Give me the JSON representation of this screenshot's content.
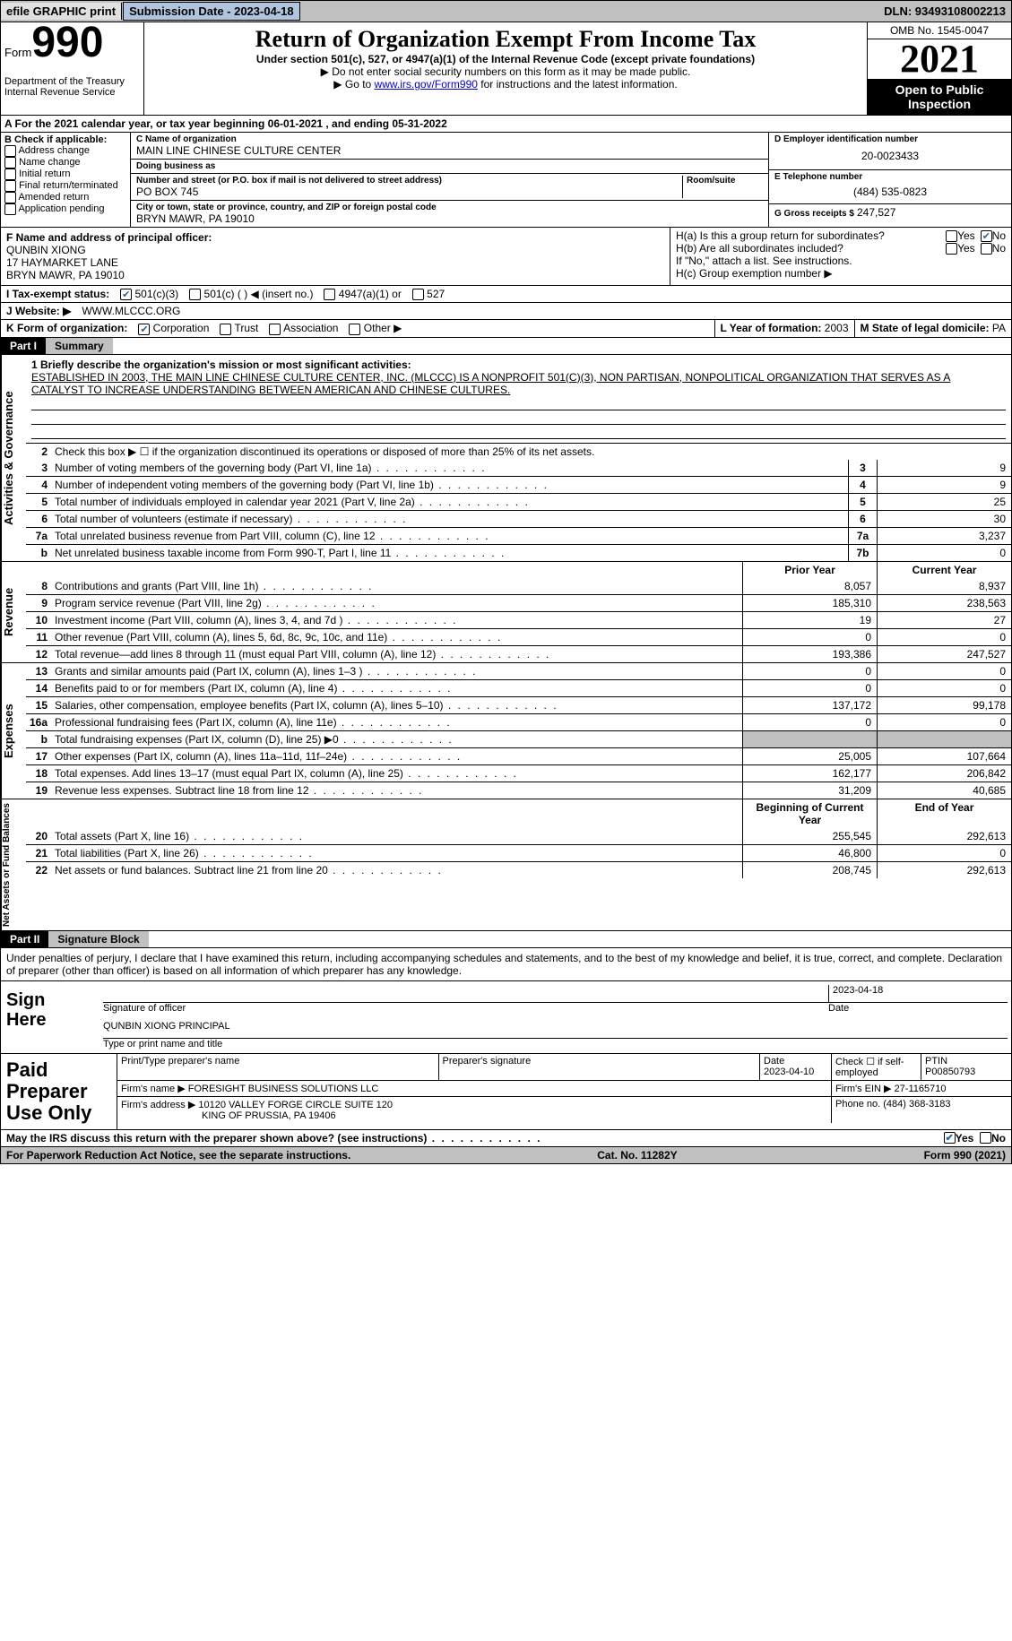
{
  "topbar": {
    "efile": "efile GRAPHIC print",
    "submission": "Submission Date - 2023-04-18",
    "dln": "DLN: 93493108002213"
  },
  "header": {
    "form_word": "Form",
    "form_num": "990",
    "dept": "Department of the Treasury",
    "irs": "Internal Revenue Service",
    "title": "Return of Organization Exempt From Income Tax",
    "subtitle": "Under section 501(c), 527, or 4947(a)(1) of the Internal Revenue Code (except private foundations)",
    "note1": "▶ Do not enter social security numbers on this form as it may be made public.",
    "note2_pre": "▶ Go to ",
    "note2_link": "www.irs.gov/Form990",
    "note2_post": " for instructions and the latest information.",
    "omb": "OMB No. 1545-0047",
    "year": "2021",
    "open": "Open to Public Inspection"
  },
  "rowA": "A For the 2021 calendar year, or tax year beginning 06-01-2021   , and ending 05-31-2022",
  "boxB": {
    "label": "B Check if applicable:",
    "items": [
      "Address change",
      "Name change",
      "Initial return",
      "Final return/terminated",
      "Amended return",
      "Application pending"
    ]
  },
  "boxC": {
    "name_label": "C Name of organization",
    "name": "MAIN LINE CHINESE CULTURE CENTER",
    "dba_label": "Doing business as",
    "dba": "",
    "street_label": "Number and street (or P.O. box if mail is not delivered to street address)",
    "room_label": "Room/suite",
    "street": "PO BOX 745",
    "city_label": "City or town, state or province, country, and ZIP or foreign postal code",
    "city": "BRYN MAWR, PA  19010"
  },
  "boxDEG": {
    "d_label": "D Employer identification number",
    "d_val": "20-0023433",
    "e_label": "E Telephone number",
    "e_val": "(484) 535-0823",
    "g_label": "G Gross receipts $",
    "g_val": "247,527"
  },
  "boxF": {
    "label": "F Name and address of principal officer:",
    "name": "QUNBIN XIONG",
    "addr1": "17 HAYMARKET LANE",
    "addr2": "BRYN MAWR, PA  19010"
  },
  "boxH": {
    "a": "H(a)  Is this a group return for subordinates?",
    "b": "H(b)  Are all subordinates included?",
    "b_note": "If \"No,\" attach a list. See instructions.",
    "c": "H(c)  Group exemption number ▶"
  },
  "rowI": {
    "label": "I   Tax-exempt status:",
    "opts": [
      "501(c)(3)",
      "501(c) (  ) ◀ (insert no.)",
      "4947(a)(1) or",
      "527"
    ]
  },
  "rowJ": {
    "label": "J   Website: ▶",
    "val": "WWW.MLCCC.ORG"
  },
  "rowK": {
    "label": "K Form of organization:",
    "opts": [
      "Corporation",
      "Trust",
      "Association",
      "Other ▶"
    ]
  },
  "rowL": {
    "label": "L Year of formation:",
    "val": "2003"
  },
  "rowM": {
    "label": "M State of legal domicile:",
    "val": "PA"
  },
  "partI": {
    "num": "Part I",
    "title": "Summary"
  },
  "summary": {
    "q1_label": "1   Briefly describe the organization's mission or most significant activities:",
    "q1_text": "ESTABLISHED IN 2003, THE MAIN LINE CHINESE CULTURE CENTER, INC. (MLCCC) IS A NONPROFIT 501(C)(3), NON PARTISAN, NONPOLITICAL ORGANIZATION THAT SERVES AS A CATALYST TO INCREASE UNDERSTANDING BETWEEN AMERICAN AND CHINESE CULTURES.",
    "q2": "Check this box ▶ ☐ if the organization discontinued its operations or disposed of more than 25% of its net assets.",
    "gov_lines": [
      {
        "n": "3",
        "t": "Number of voting members of the governing body (Part VI, line 1a)",
        "b": "3",
        "v": "9"
      },
      {
        "n": "4",
        "t": "Number of independent voting members of the governing body (Part VI, line 1b)",
        "b": "4",
        "v": "9"
      },
      {
        "n": "5",
        "t": "Total number of individuals employed in calendar year 2021 (Part V, line 2a)",
        "b": "5",
        "v": "25"
      },
      {
        "n": "6",
        "t": "Total number of volunteers (estimate if necessary)",
        "b": "6",
        "v": "30"
      },
      {
        "n": "7a",
        "t": "Total unrelated business revenue from Part VIII, column (C), line 12",
        "b": "7a",
        "v": "3,237"
      },
      {
        "n": "b",
        "t": "Net unrelated business taxable income from Form 990-T, Part I, line 11",
        "b": "7b",
        "v": "0"
      }
    ],
    "col_prior": "Prior Year",
    "col_curr": "Current Year",
    "rev_lines": [
      {
        "n": "8",
        "t": "Contributions and grants (Part VIII, line 1h)",
        "p": "8,057",
        "c": "8,937"
      },
      {
        "n": "9",
        "t": "Program service revenue (Part VIII, line 2g)",
        "p": "185,310",
        "c": "238,563"
      },
      {
        "n": "10",
        "t": "Investment income (Part VIII, column (A), lines 3, 4, and 7d )",
        "p": "19",
        "c": "27"
      },
      {
        "n": "11",
        "t": "Other revenue (Part VIII, column (A), lines 5, 6d, 8c, 9c, 10c, and 11e)",
        "p": "0",
        "c": "0"
      },
      {
        "n": "12",
        "t": "Total revenue—add lines 8 through 11 (must equal Part VIII, column (A), line 12)",
        "p": "193,386",
        "c": "247,527"
      }
    ],
    "exp_lines": [
      {
        "n": "13",
        "t": "Grants and similar amounts paid (Part IX, column (A), lines 1–3 )",
        "p": "0",
        "c": "0"
      },
      {
        "n": "14",
        "t": "Benefits paid to or for members (Part IX, column (A), line 4)",
        "p": "0",
        "c": "0"
      },
      {
        "n": "15",
        "t": "Salaries, other compensation, employee benefits (Part IX, column (A), lines 5–10)",
        "p": "137,172",
        "c": "99,178"
      },
      {
        "n": "16a",
        "t": "Professional fundraising fees (Part IX, column (A), line 11e)",
        "p": "0",
        "c": "0"
      },
      {
        "n": "b",
        "t": "Total fundraising expenses (Part IX, column (D), line 25) ▶0",
        "p": "",
        "c": "",
        "shade": true
      },
      {
        "n": "17",
        "t": "Other expenses (Part IX, column (A), lines 11a–11d, 11f–24e)",
        "p": "25,005",
        "c": "107,664"
      },
      {
        "n": "18",
        "t": "Total expenses. Add lines 13–17 (must equal Part IX, column (A), line 25)",
        "p": "162,177",
        "c": "206,842"
      },
      {
        "n": "19",
        "t": "Revenue less expenses. Subtract line 18 from line 12",
        "p": "31,209",
        "c": "40,685"
      }
    ],
    "col_begin": "Beginning of Current Year",
    "col_end": "End of Year",
    "net_lines": [
      {
        "n": "20",
        "t": "Total assets (Part X, line 16)",
        "p": "255,545",
        "c": "292,613"
      },
      {
        "n": "21",
        "t": "Total liabilities (Part X, line 26)",
        "p": "46,800",
        "c": "0"
      },
      {
        "n": "22",
        "t": "Net assets or fund balances. Subtract line 21 from line 20",
        "p": "208,745",
        "c": "292,613"
      }
    ],
    "tabs": {
      "gov": "Activities & Governance",
      "rev": "Revenue",
      "exp": "Expenses",
      "net": "Net Assets or\nFund Balances"
    }
  },
  "partII": {
    "num": "Part II",
    "title": "Signature Block"
  },
  "sig": {
    "intro": "Under penalties of perjury, I declare that I have examined this return, including accompanying schedules and statements, and to the best of my knowledge and belief, it is true, correct, and complete. Declaration of preparer (other than officer) is based on all information of which preparer has any knowledge.",
    "here": "Sign\nHere",
    "sig_label": "Signature of officer",
    "date_label": "Date",
    "date": "2023-04-18",
    "name": "QUNBIN XIONG  PRINCIPAL",
    "name_label": "Type or print name and title"
  },
  "paid": {
    "title": "Paid\nPreparer\nUse Only",
    "h1": "Print/Type preparer's name",
    "h2": "Preparer's signature",
    "h3": "Date",
    "h3v": "2023-04-10",
    "h4": "Check ☐ if self-employed",
    "h5": "PTIN",
    "h5v": "P00850793",
    "firm_label": "Firm's name    ▶",
    "firm": "FORESIGHT BUSINESS SOLUTIONS LLC",
    "ein_label": "Firm's EIN ▶",
    "ein": "27-1165710",
    "addr_label": "Firm's address ▶",
    "addr1": "10120 VALLEY FORGE CIRCLE SUITE 120",
    "addr2": "KING OF PRUSSIA, PA  19406",
    "phone_label": "Phone no.",
    "phone": "(484) 368-3183"
  },
  "discuss": "May the IRS discuss this return with the preparer shown above? (see instructions)",
  "footer": {
    "pra": "For Paperwork Reduction Act Notice, see the separate instructions.",
    "cat": "Cat. No. 11282Y",
    "form": "Form 990 (2021)"
  },
  "colors": {
    "grayfill": "#c0c0c0",
    "link": "#0000cc"
  }
}
